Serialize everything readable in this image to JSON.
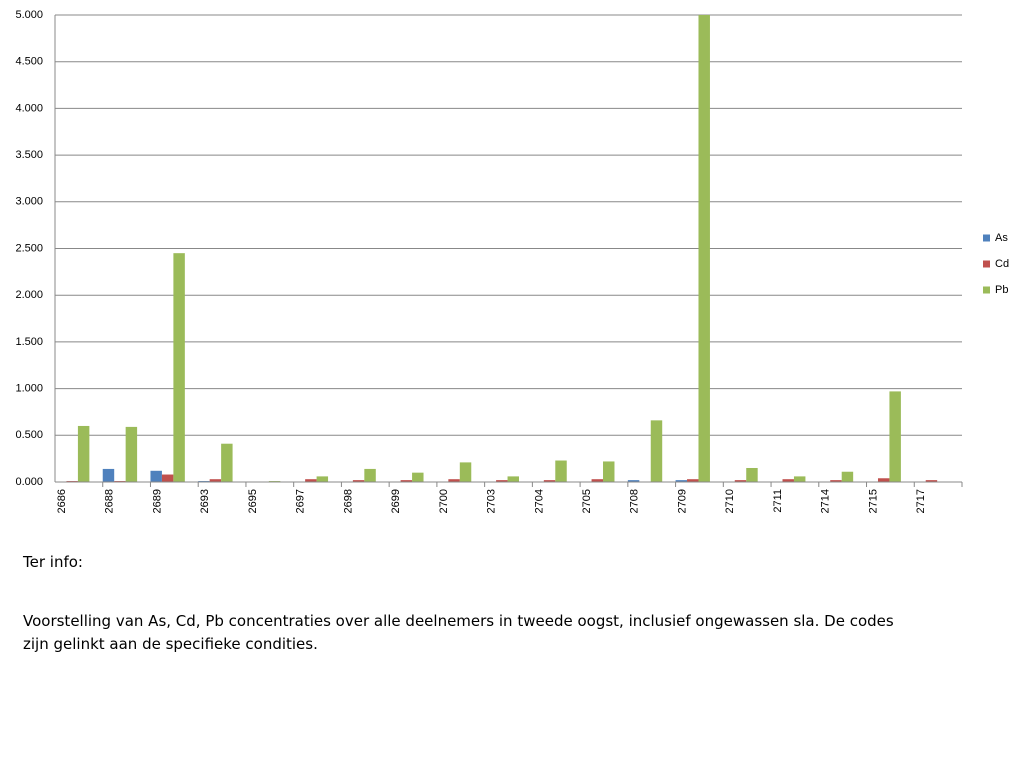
{
  "chart_data": {
    "type": "bar",
    "categories": [
      "2686",
      "2688",
      "2689",
      "2693",
      "2695",
      "2697",
      "2698",
      "2699",
      "2700",
      "2703",
      "2704",
      "2705",
      "2708",
      "2709",
      "2710",
      "2711",
      "2714",
      "2715",
      "2717"
    ],
    "series": [
      {
        "name": "As",
        "color": "#4f81bd",
        "values": [
          0.005,
          0.14,
          0.12,
          0.01,
          0,
          0,
          0.005,
          0,
          0.005,
          0,
          0,
          0.005,
          0.02,
          0.02,
          0,
          0.005,
          0.005,
          0.005,
          0
        ]
      },
      {
        "name": "Cd",
        "color": "#c0504d",
        "values": [
          0.01,
          0.01,
          0.08,
          0.03,
          0.005,
          0.03,
          0.02,
          0.02,
          0.03,
          0.02,
          0.02,
          0.03,
          0.005,
          0.03,
          0.02,
          0.03,
          0.02,
          0.04,
          0.02
        ]
      },
      {
        "name": "Pb",
        "color": "#9bbb59",
        "values": [
          0.6,
          0.59,
          2.45,
          0.41,
          0.01,
          0.06,
          0.14,
          0.1,
          0.21,
          0.06,
          0.23,
          0.22,
          0.66,
          5.0,
          0.15,
          0.06,
          0.11,
          0.97,
          0
        ]
      }
    ],
    "ylim": [
      0,
      5
    ],
    "yticks": [
      {
        "value": 0,
        "label": "0.000"
      },
      {
        "value": 0.5,
        "label": "0.500"
      },
      {
        "value": 1,
        "label": "1.000"
      },
      {
        "value": 1.5,
        "label": "1.500"
      },
      {
        "value": 2,
        "label": "2.000"
      },
      {
        "value": 2.5,
        "label": "2.500"
      },
      {
        "value": 3,
        "label": "3.000"
      },
      {
        "value": 3.5,
        "label": "3.500"
      },
      {
        "value": 4,
        "label": "4.000"
      },
      {
        "value": 4.5,
        "label": "4.500"
      },
      {
        "value": 5,
        "label": "5.000"
      }
    ],
    "grid": true,
    "legend": "right"
  },
  "notes": {
    "heading": "Ter info:",
    "body": "Voorstelling van As, Cd, Pb concentraties over alle deelnemers in tweede oogst, inclusief ongewassen sla. De codes zijn gelinkt aan de specifieke condities."
  }
}
